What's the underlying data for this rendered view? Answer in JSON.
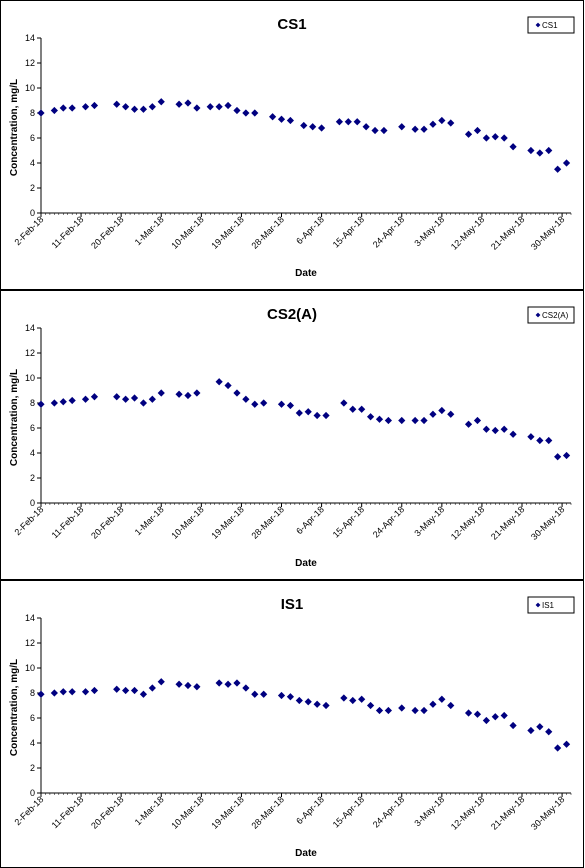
{
  "chart_data": [
    {
      "type": "scatter",
      "title": "CS1",
      "xlabel": "Date",
      "ylabel": "Concentration, mg/L",
      "ylim": [
        0,
        14
      ],
      "yticks": [
        0,
        2,
        4,
        6,
        8,
        10,
        12,
        14
      ],
      "xlim": [
        "2018-02-02",
        "2018-06-01"
      ],
      "xticks": [
        "2-Feb-18",
        "11-Feb-18",
        "20-Feb-18",
        "1-Mar-18",
        "10-Mar-18",
        "19-Mar-18",
        "28-Mar-18",
        "6-Apr-18",
        "15-Apr-18",
        "24-Apr-18",
        "3-May-18",
        "12-May-18",
        "21-May-18",
        "30-May-18"
      ],
      "legend": "top-right",
      "grid": false,
      "marker_color": "#000080",
      "series": [
        {
          "name": "CS1",
          "x": [
            "2018-02-02",
            "2018-02-05",
            "2018-02-07",
            "2018-02-09",
            "2018-02-12",
            "2018-02-14",
            "2018-02-19",
            "2018-02-21",
            "2018-02-23",
            "2018-02-25",
            "2018-02-27",
            "2018-03-01",
            "2018-03-05",
            "2018-03-07",
            "2018-03-09",
            "2018-03-12",
            "2018-03-14",
            "2018-03-16",
            "2018-03-18",
            "2018-03-20",
            "2018-03-22",
            "2018-03-26",
            "2018-03-28",
            "2018-03-30",
            "2018-04-02",
            "2018-04-04",
            "2018-04-06",
            "2018-04-10",
            "2018-04-12",
            "2018-04-14",
            "2018-04-16",
            "2018-04-18",
            "2018-04-20",
            "2018-04-24",
            "2018-04-27",
            "2018-04-29",
            "2018-05-01",
            "2018-05-03",
            "2018-05-05",
            "2018-05-09",
            "2018-05-11",
            "2018-05-13",
            "2018-05-15",
            "2018-05-17",
            "2018-05-19",
            "2018-05-23",
            "2018-05-25",
            "2018-05-27",
            "2018-05-29",
            "2018-05-31"
          ],
          "y": [
            8.0,
            8.2,
            8.4,
            8.4,
            8.5,
            8.6,
            8.7,
            8.5,
            8.3,
            8.3,
            8.5,
            8.9,
            8.7,
            8.8,
            8.4,
            8.5,
            8.5,
            8.6,
            8.2,
            8.0,
            8.0,
            7.7,
            7.5,
            7.4,
            7.0,
            6.9,
            6.8,
            7.3,
            7.3,
            7.3,
            6.9,
            6.6,
            6.6,
            6.9,
            6.7,
            6.7,
            7.1,
            7.4,
            7.2,
            6.3,
            6.6,
            6.0,
            6.1,
            6.0,
            5.3,
            5.0,
            4.8,
            5.0,
            3.5,
            4.0
          ]
        }
      ]
    },
    {
      "type": "scatter",
      "title": "CS2(A)",
      "xlabel": "Date",
      "ylabel": "Concentration, mg/L",
      "ylim": [
        0,
        14
      ],
      "yticks": [
        0,
        2,
        4,
        6,
        8,
        10,
        12,
        14
      ],
      "xlim": [
        "2018-02-02",
        "2018-06-01"
      ],
      "xticks": [
        "2-Feb-18",
        "11-Feb-18",
        "20-Feb-18",
        "1-Mar-18",
        "10-Mar-18",
        "19-Mar-18",
        "28-Mar-18",
        "6-Apr-18",
        "15-Apr-18",
        "24-Apr-18",
        "3-May-18",
        "12-May-18",
        "21-May-18",
        "30-May-18"
      ],
      "legend": "top-right",
      "grid": false,
      "marker_color": "#000080",
      "series": [
        {
          "name": "CS2(A)",
          "x": [
            "2018-02-02",
            "2018-02-05",
            "2018-02-07",
            "2018-02-09",
            "2018-02-12",
            "2018-02-14",
            "2018-02-19",
            "2018-02-21",
            "2018-02-23",
            "2018-02-25",
            "2018-02-27",
            "2018-03-01",
            "2018-03-05",
            "2018-03-07",
            "2018-03-09",
            "2018-03-14",
            "2018-03-16",
            "2018-03-18",
            "2018-03-20",
            "2018-03-22",
            "2018-03-24",
            "2018-03-28",
            "2018-03-30",
            "2018-04-01",
            "2018-04-03",
            "2018-04-05",
            "2018-04-07",
            "2018-04-11",
            "2018-04-13",
            "2018-04-15",
            "2018-04-17",
            "2018-04-19",
            "2018-04-21",
            "2018-04-24",
            "2018-04-27",
            "2018-04-29",
            "2018-05-01",
            "2018-05-03",
            "2018-05-05",
            "2018-05-09",
            "2018-05-11",
            "2018-05-13",
            "2018-05-15",
            "2018-05-17",
            "2018-05-19",
            "2018-05-23",
            "2018-05-25",
            "2018-05-27",
            "2018-05-29",
            "2018-05-31"
          ],
          "y": [
            7.9,
            8.0,
            8.1,
            8.2,
            8.3,
            8.5,
            8.5,
            8.3,
            8.4,
            8.0,
            8.3,
            8.8,
            8.7,
            8.6,
            8.8,
            9.7,
            9.4,
            8.8,
            8.3,
            7.9,
            8.0,
            7.9,
            7.8,
            7.2,
            7.3,
            7.0,
            7.0,
            8.0,
            7.5,
            7.5,
            6.9,
            6.7,
            6.6,
            6.6,
            6.6,
            6.6,
            7.1,
            7.4,
            7.1,
            6.3,
            6.6,
            5.9,
            5.8,
            5.9,
            5.5,
            5.3,
            5.0,
            5.0,
            3.7,
            3.8
          ]
        }
      ]
    },
    {
      "type": "scatter",
      "title": "IS1",
      "xlabel": "Date",
      "ylabel": "Concentration, mg/L",
      "ylim": [
        0,
        14
      ],
      "yticks": [
        0,
        2,
        4,
        6,
        8,
        10,
        12,
        14
      ],
      "xlim": [
        "2018-02-02",
        "2018-06-01"
      ],
      "xticks": [
        "2-Feb-18",
        "11-Feb-18",
        "20-Feb-18",
        "1-Mar-18",
        "10-Mar-18",
        "19-Mar-18",
        "28-Mar-18",
        "6-Apr-18",
        "15-Apr-18",
        "24-Apr-18",
        "3-May-18",
        "12-May-18",
        "21-May-18",
        "30-May-18"
      ],
      "legend": "top-right",
      "grid": false,
      "marker_color": "#000080",
      "series": [
        {
          "name": "IS1",
          "x": [
            "2018-02-02",
            "2018-02-05",
            "2018-02-07",
            "2018-02-09",
            "2018-02-12",
            "2018-02-14",
            "2018-02-19",
            "2018-02-21",
            "2018-02-23",
            "2018-02-25",
            "2018-02-27",
            "2018-03-01",
            "2018-03-05",
            "2018-03-07",
            "2018-03-09",
            "2018-03-14",
            "2018-03-16",
            "2018-03-18",
            "2018-03-20",
            "2018-03-22",
            "2018-03-24",
            "2018-03-28",
            "2018-03-30",
            "2018-04-01",
            "2018-04-03",
            "2018-04-05",
            "2018-04-07",
            "2018-04-11",
            "2018-04-13",
            "2018-04-15",
            "2018-04-17",
            "2018-04-19",
            "2018-04-21",
            "2018-04-24",
            "2018-04-27",
            "2018-04-29",
            "2018-05-01",
            "2018-05-03",
            "2018-05-05",
            "2018-05-09",
            "2018-05-11",
            "2018-05-13",
            "2018-05-15",
            "2018-05-17",
            "2018-05-19",
            "2018-05-23",
            "2018-05-25",
            "2018-05-27",
            "2018-05-29",
            "2018-05-31"
          ],
          "y": [
            7.9,
            8.0,
            8.1,
            8.1,
            8.1,
            8.2,
            8.3,
            8.2,
            8.2,
            7.9,
            8.4,
            8.9,
            8.7,
            8.6,
            8.5,
            8.8,
            8.7,
            8.8,
            8.4,
            7.9,
            7.9,
            7.8,
            7.7,
            7.4,
            7.3,
            7.1,
            7.0,
            7.6,
            7.4,
            7.5,
            7.0,
            6.6,
            6.6,
            6.8,
            6.6,
            6.6,
            7.1,
            7.5,
            7.0,
            6.4,
            6.3,
            5.8,
            6.1,
            6.2,
            5.4,
            5.0,
            5.3,
            4.9,
            3.6,
            3.9
          ]
        }
      ]
    }
  ]
}
